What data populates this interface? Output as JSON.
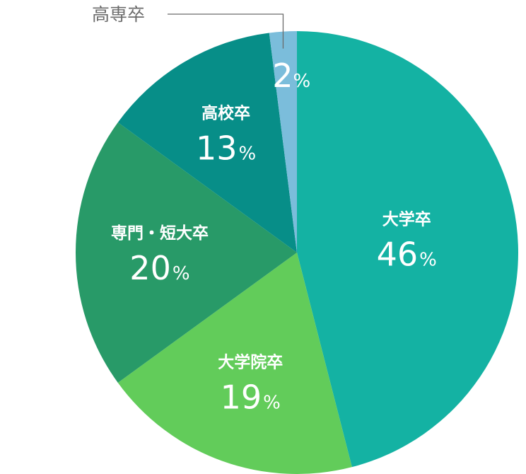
{
  "chart_data": {
    "type": "pie",
    "unit": "%",
    "slices": [
      {
        "label": "大学卒",
        "value": 46,
        "color": "#14b2a3"
      },
      {
        "label": "大学院卒",
        "value": 19,
        "color": "#62cc5a"
      },
      {
        "label": "専門・短大卒",
        "value": 20,
        "color": "#289a68"
      },
      {
        "label": "高校卒",
        "value": 13,
        "color": "#078e88"
      },
      {
        "label": "高専卒",
        "value": 2,
        "color": "#7bbddb"
      }
    ]
  }
}
